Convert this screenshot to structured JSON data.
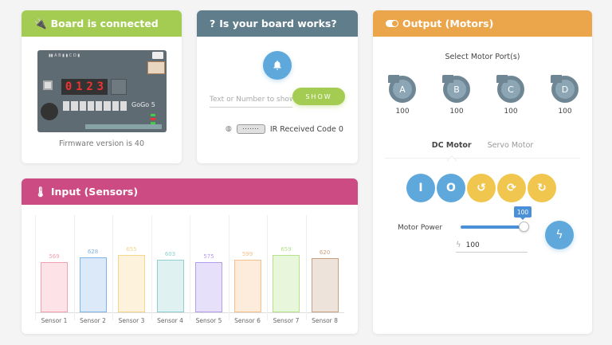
{
  "board_card": {
    "title": "Board is connected",
    "icon": "plug-icon",
    "board_display_digits": [
      "0",
      "1",
      "2",
      "3"
    ],
    "board_name": "GoGo 5",
    "firmware_text": "Firmware version is 40"
  },
  "test_card": {
    "title": "Is your board works?",
    "icon": "question-icon",
    "beep_icon": "bell-icon",
    "input_placeholder": "Text or Number to show",
    "input_value": "",
    "show_button": "SHOW",
    "ir_label": "IR Received Code 0"
  },
  "motor_card": {
    "title": "Output (Motors)",
    "icon": "toggle-icon",
    "select_label": "Select Motor Port(s)",
    "ports": [
      {
        "label": "A",
        "value": "100"
      },
      {
        "label": "B",
        "value": "100"
      },
      {
        "label": "C",
        "value": "100"
      },
      {
        "label": "D",
        "value": "100"
      }
    ],
    "tabs": [
      {
        "label": "DC Motor",
        "active": true
      },
      {
        "label": "Servo Motor",
        "active": false
      }
    ],
    "controls": [
      {
        "name": "on",
        "glyph": "I",
        "color": "#5fa8db"
      },
      {
        "name": "off",
        "glyph": "O",
        "color": "#5fa8db"
      },
      {
        "name": "counterclockwise",
        "glyph": "↺",
        "color": "#f0c64e"
      },
      {
        "name": "reverse",
        "glyph": "⟳",
        "color": "#f0c64e"
      },
      {
        "name": "clockwise",
        "glyph": "↻",
        "color": "#f0c64e"
      }
    ],
    "power_label": "Motor Power",
    "power_slider_value": "100",
    "power_input_value": "100",
    "power_go_icon": "bolt-icon"
  },
  "sensor_card": {
    "title": "Input (Sensors)",
    "icon": "thermometer-icon"
  },
  "chart_data": {
    "type": "bar",
    "title": "Input (Sensors)",
    "categories": [
      "Sensor 1",
      "Sensor 2",
      "Sensor 3",
      "Sensor 4",
      "Sensor 5",
      "Sensor 6",
      "Sensor 7",
      "Sensor 8"
    ],
    "values": [
      569,
      628,
      655,
      603,
      575,
      599,
      659,
      620
    ],
    "colors": [
      "#f4a0b0",
      "#7fb4e8",
      "#f5d68a",
      "#8fd0d0",
      "#b49cf0",
      "#f5c08a",
      "#b8e08a",
      "#c8a080"
    ],
    "fills": [
      "#fde2e8",
      "#dce9f8",
      "#fdf2dc",
      "#dff1f1",
      "#e7e0fb",
      "#fdecdc",
      "#e8f6dc",
      "#ede3da"
    ],
    "xlabel": "",
    "ylabel": "",
    "grid": true
  }
}
